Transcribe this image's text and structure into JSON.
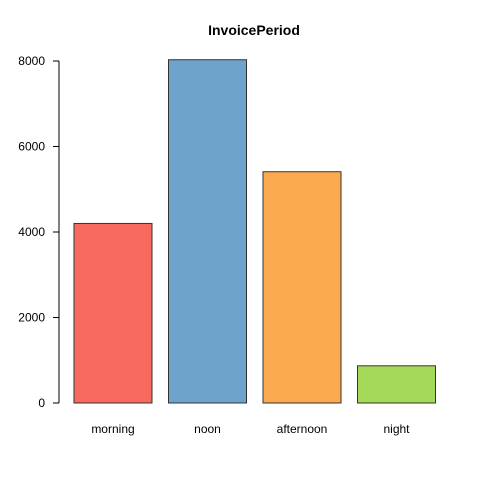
{
  "chart_data": {
    "type": "bar",
    "title": "InvoicePeriod",
    "xlabel": "",
    "ylabel": "",
    "categories": [
      "morning",
      "noon",
      "afternoon",
      "night"
    ],
    "values": [
      4200,
      8030,
      5410,
      870
    ],
    "colors": [
      "#f8695f",
      "#6ea4cc",
      "#fbaa4f",
      "#a5d95a"
    ],
    "ylim": [
      0,
      8000
    ],
    "yticks": [
      0,
      2000,
      4000,
      6000,
      8000
    ],
    "grid": false,
    "legend": "none"
  }
}
